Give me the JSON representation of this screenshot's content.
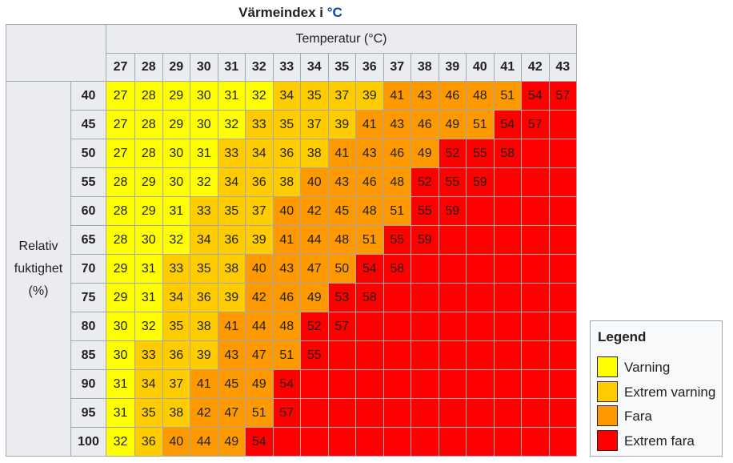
{
  "caption": {
    "text": "Värmeindex i",
    "unit": "°C"
  },
  "table": {
    "temperature_title": "Temperatur (°C)",
    "humidity_title_lines": [
      "Relativ",
      "fuktighet",
      "(%)"
    ],
    "temperatures": [
      27,
      28,
      29,
      30,
      31,
      32,
      33,
      34,
      35,
      36,
      37,
      38,
      39,
      40,
      41,
      42,
      43
    ],
    "rows": [
      {
        "rh": 40,
        "values": [
          27,
          28,
          29,
          30,
          31,
          32,
          34,
          35,
          37,
          39,
          41,
          43,
          46,
          48,
          51,
          54,
          57
        ]
      },
      {
        "rh": 45,
        "values": [
          27,
          28,
          29,
          30,
          32,
          33,
          35,
          37,
          39,
          41,
          43,
          46,
          49,
          51,
          54,
          57
        ]
      },
      {
        "rh": 50,
        "values": [
          27,
          28,
          30,
          31,
          33,
          34,
          36,
          38,
          41,
          43,
          46,
          49,
          52,
          55,
          58
        ]
      },
      {
        "rh": 55,
        "values": [
          28,
          29,
          30,
          32,
          34,
          36,
          38,
          40,
          43,
          46,
          48,
          52,
          55,
          59
        ]
      },
      {
        "rh": 60,
        "values": [
          28,
          29,
          31,
          33,
          35,
          37,
          40,
          42,
          45,
          48,
          51,
          55,
          59
        ]
      },
      {
        "rh": 65,
        "values": [
          28,
          30,
          32,
          34,
          36,
          39,
          41,
          44,
          48,
          51,
          55,
          59
        ]
      },
      {
        "rh": 70,
        "values": [
          29,
          31,
          33,
          35,
          38,
          40,
          43,
          47,
          50,
          54,
          58
        ]
      },
      {
        "rh": 75,
        "values": [
          29,
          31,
          34,
          36,
          39,
          42,
          46,
          49,
          53,
          58
        ]
      },
      {
        "rh": 80,
        "values": [
          30,
          32,
          35,
          38,
          41,
          44,
          48,
          52,
          57
        ]
      },
      {
        "rh": 85,
        "values": [
          30,
          33,
          36,
          39,
          43,
          47,
          51,
          55
        ]
      },
      {
        "rh": 90,
        "values": [
          31,
          34,
          37,
          41,
          45,
          49,
          54
        ]
      },
      {
        "rh": 95,
        "values": [
          31,
          35,
          38,
          42,
          47,
          51,
          57
        ]
      },
      {
        "rh": 100,
        "values": [
          32,
          36,
          40,
          44,
          49,
          54
        ]
      }
    ]
  },
  "levels": {
    "colors": {
      "varning": "#ffff00",
      "extrem_varning": "#ffcc00",
      "fara": "#ff9900",
      "extrem_fara": "#ff0000"
    },
    "thresholds": {
      "extrem_varning_min": 33,
      "fara_min": 40,
      "extrem_fara_min": 52
    }
  },
  "legend": {
    "title": "Legend",
    "items": [
      {
        "label": "Varning",
        "color": "#ffff00"
      },
      {
        "label": "Extrem varning",
        "color": "#ffcc00"
      },
      {
        "label": "Fara",
        "color": "#ff9900"
      },
      {
        "label": "Extrem fara",
        "color": "#ff0000"
      }
    ]
  }
}
